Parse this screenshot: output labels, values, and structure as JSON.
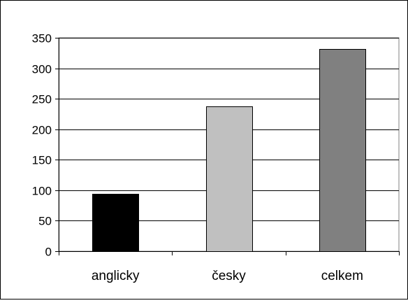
{
  "chart_data": {
    "type": "bar",
    "title": "",
    "xlabel": "",
    "ylabel": "",
    "categories": [
      "anglicky",
      "česky",
      "celkem"
    ],
    "values": [
      94,
      238,
      332
    ],
    "bar_colors": [
      "#000000",
      "#c0c0c0",
      "#808080"
    ],
    "ylim": [
      0,
      350
    ],
    "yticks": [
      0,
      50,
      100,
      150,
      200,
      250,
      300,
      350
    ],
    "ytick_labels": [
      "0",
      "50",
      "100",
      "150",
      "200",
      "250",
      "300",
      "350"
    ],
    "grid": true,
    "legend": "none"
  }
}
